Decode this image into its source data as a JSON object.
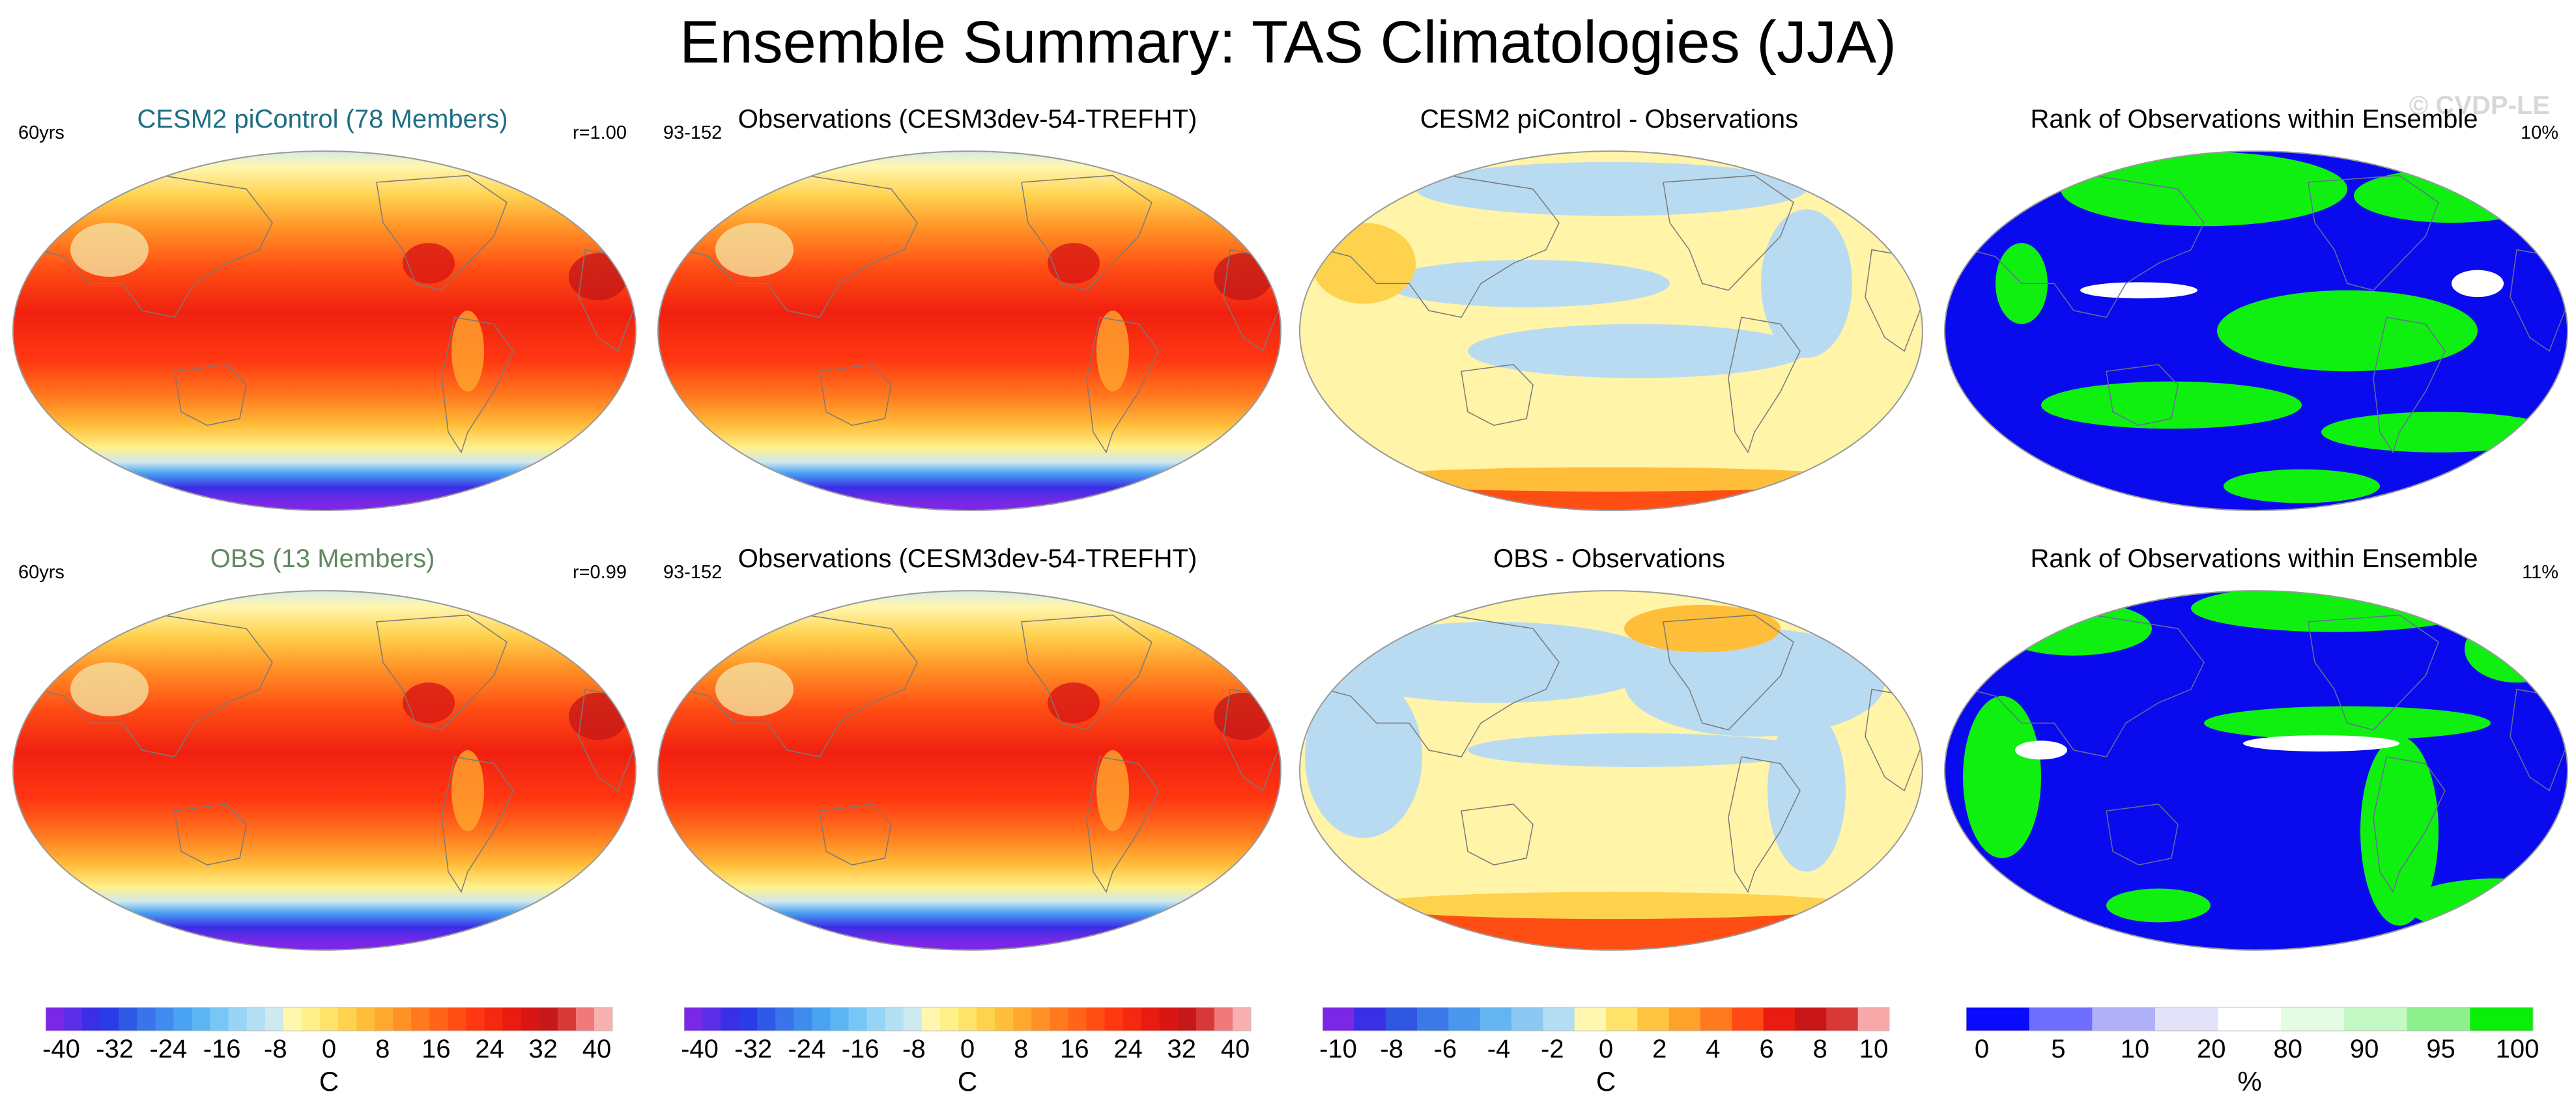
{
  "page": {
    "title": "Ensemble Summary: TAS Climatologies (JJA)",
    "watermark": "© CVDP-LE"
  },
  "rows": [
    {
      "panels": [
        {
          "title": "CESM2 piControl (78 Members)",
          "title_color": "#1f6f84",
          "left": "60yrs",
          "right": "r=1.00",
          "kind": "clim"
        },
        {
          "title": "Observations (CESM3dev-54-TREFHT)",
          "title_color": "#000000",
          "left": "93-152",
          "right": "",
          "kind": "clim"
        },
        {
          "title": "CESM2 piControl - Observations",
          "title_color": "#000000",
          "left": "",
          "right": "",
          "kind": "diff"
        },
        {
          "title": "Rank of Observations within Ensemble",
          "title_color": "#000000",
          "left": "",
          "right": "10%",
          "kind": "rank"
        }
      ]
    },
    {
      "panels": [
        {
          "title": "OBS (13 Members)",
          "title_color": "#5e8a5e",
          "left": "60yrs",
          "right": "r=0.99",
          "kind": "clim"
        },
        {
          "title": "Observations (CESM3dev-54-TREFHT)",
          "title_color": "#000000",
          "left": "93-152",
          "right": "",
          "kind": "clim"
        },
        {
          "title": "OBS - Observations",
          "title_color": "#000000",
          "left": "",
          "right": "",
          "kind": "diff"
        },
        {
          "title": "Rank of Observations within Ensemble",
          "title_color": "#000000",
          "left": "",
          "right": "11%",
          "kind": "rank"
        }
      ]
    }
  ],
  "colorbars": [
    {
      "unit": "C",
      "ticks": [
        "-40",
        "-32",
        "-24",
        "-16",
        "-8",
        "0",
        "8",
        "16",
        "24",
        "32",
        "40"
      ],
      "colors": [
        "#7a28e6",
        "#5b2ee8",
        "#3a2fe6",
        "#2a3ce8",
        "#2f5ae6",
        "#3a74ea",
        "#3f8bee",
        "#4aa2f2",
        "#5cb6f4",
        "#78c6f6",
        "#98d4f6",
        "#b4e0f4",
        "#cfe9f0",
        "#fff7b0",
        "#fff08a",
        "#ffe36a",
        "#ffd24e",
        "#ffbe3a",
        "#ffa82e",
        "#ff9226",
        "#ff7a1e",
        "#ff6418",
        "#ff4e14",
        "#ff3812",
        "#f52810",
        "#e81c10",
        "#d81614",
        "#c61818",
        "#d83838",
        "#f07a7a",
        "#f8b0b0"
      ]
    },
    {
      "unit": "C",
      "ticks": [
        "-40",
        "-32",
        "-24",
        "-16",
        "-8",
        "0",
        "8",
        "16",
        "24",
        "32",
        "40"
      ],
      "colors": [
        "#7a28e6",
        "#5b2ee8",
        "#3a2fe6",
        "#2a3ce8",
        "#2f5ae6",
        "#3a74ea",
        "#3f8bee",
        "#4aa2f2",
        "#5cb6f4",
        "#78c6f6",
        "#98d4f6",
        "#b4e0f4",
        "#cfe9f0",
        "#fff7b0",
        "#fff08a",
        "#ffe36a",
        "#ffd24e",
        "#ffbe3a",
        "#ffa82e",
        "#ff9226",
        "#ff7a1e",
        "#ff6418",
        "#ff4e14",
        "#ff3812",
        "#f52810",
        "#e81c10",
        "#d81614",
        "#c61818",
        "#d83838",
        "#f07a7a",
        "#f8b0b0"
      ]
    },
    {
      "unit": "C",
      "ticks": [
        "-10",
        "-8",
        "-6",
        "-4",
        "-2",
        "0",
        "2",
        "4",
        "6",
        "8",
        "10"
      ],
      "colors": [
        "#7a28e6",
        "#3a2fe6",
        "#2f56e0",
        "#3c78e6",
        "#4a98ee",
        "#64b4f2",
        "#8cc8f2",
        "#b4dcf2",
        "#fff7b0",
        "#ffe36a",
        "#ffc442",
        "#ffa22c",
        "#ff7a1e",
        "#ff4a14",
        "#e81c10",
        "#c81616",
        "#d83838",
        "#f8a8a8"
      ]
    },
    {
      "unit": "%",
      "ticks": [
        "0",
        "5",
        "10",
        "20",
        "80",
        "90",
        "95",
        "100"
      ],
      "colors": [
        "#0a0aff",
        "#6f6fff",
        "#b0b0f8",
        "#e2e2f8",
        "#ffffff",
        "#e4fbe4",
        "#c4f8c4",
        "#8cf08c",
        "#0aee0a"
      ]
    }
  ],
  "colors": {
    "diff_blue": "#b9dbf2",
    "diff_yellow": "#fff4a8",
    "rank_blue": "#0a0aee",
    "rank_green": "#10f010"
  }
}
